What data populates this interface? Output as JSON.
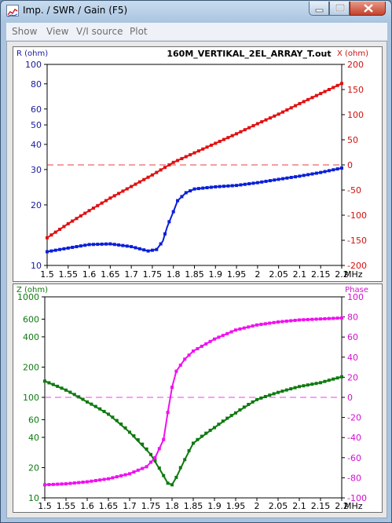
{
  "window": {
    "title": "Imp. / SWR / Gain   (F5)",
    "menu": [
      "Show",
      "View",
      "V/I source",
      "Plot"
    ]
  },
  "chart_data": [
    {
      "type": "line",
      "title": "160M_VERTIKAL_2EL_ARRAY_T.out",
      "xlabel": "MHz",
      "y_left_label": "R (ohm)",
      "y_right_label": "X (ohm)",
      "x_ticks": [
        "1.5",
        "1.55",
        "1.6",
        "1.65",
        "1.7",
        "1.75",
        "1.8",
        "1.85",
        "1.9",
        "1.95",
        "2",
        "2.05",
        "2.1",
        "2.15",
        "2.2"
      ],
      "y_left_ticks": [
        "10",
        "20",
        "30",
        "40",
        "50",
        "60",
        "80",
        "100"
      ],
      "y_right_ticks": [
        "-200",
        "-150",
        "-100",
        "-50",
        "0",
        "50",
        "100",
        "150",
        "200"
      ],
      "xlim": [
        1.5,
        2.2
      ],
      "y_left_scale": "log",
      "y_left_lim": [
        10,
        100
      ],
      "y_right_lim": [
        -200,
        200
      ],
      "ref_line_right": 0,
      "colors": {
        "left": "#0a1fd8",
        "right": "#e01010",
        "left_axis": "#1a1a9a",
        "right_axis": "#d01010"
      },
      "series": [
        {
          "axis": "left",
          "x": [
            1.5,
            1.55,
            1.6,
            1.65,
            1.7,
            1.74,
            1.76,
            1.775,
            1.785,
            1.8,
            1.81,
            1.83,
            1.85,
            1.9,
            1.95,
            2.0,
            2.05,
            2.1,
            2.15,
            2.2
          ],
          "y": [
            11.7,
            12.2,
            12.7,
            12.8,
            12.4,
            11.8,
            12.0,
            13.2,
            15.5,
            18.5,
            21,
            23,
            24,
            24.6,
            25,
            25.8,
            26.8,
            27.8,
            29,
            30.5
          ]
        },
        {
          "axis": "right",
          "x": [
            1.5,
            1.55,
            1.6,
            1.65,
            1.7,
            1.75,
            1.8,
            1.85,
            1.9,
            1.95,
            2.0,
            2.05,
            2.1,
            2.15,
            2.2
          ],
          "y": [
            -145,
            -117,
            -91,
            -66,
            -43,
            -20,
            5,
            24,
            43,
            62,
            82,
            101,
            122,
            142,
            162
          ]
        }
      ]
    },
    {
      "type": "line",
      "xlabel": "MHz",
      "y_left_label": "Z (ohm)",
      "y_right_label": "Phase",
      "x_ticks": [
        "1.5",
        "1.55",
        "1.6",
        "1.65",
        "1.7",
        "1.75",
        "1.8",
        "1.85",
        "1.9",
        "1.95",
        "2",
        "2.05",
        "2.1",
        "2.15",
        "2.2"
      ],
      "y_left_ticks": [
        "10",
        "20",
        "40",
        "60",
        "100",
        "200",
        "400",
        "600",
        "1000"
      ],
      "y_right_ticks": [
        "-100",
        "-80",
        "-60",
        "-40",
        "-20",
        "0",
        "20",
        "40",
        "60",
        "80",
        "100"
      ],
      "xlim": [
        1.5,
        2.2
      ],
      "y_left_scale": "log",
      "y_left_lim": [
        10,
        1000
      ],
      "y_right_lim": [
        -100,
        100
      ],
      "ref_line_right": 0,
      "colors": {
        "left": "#0f7a0f",
        "right": "#f010f0",
        "left_axis": "#0f7a0f",
        "right_axis": "#d010d0"
      },
      "series": [
        {
          "axis": "left",
          "x": [
            1.5,
            1.55,
            1.6,
            1.65,
            1.7,
            1.75,
            1.775,
            1.79,
            1.8,
            1.81,
            1.83,
            1.85,
            1.9,
            1.95,
            2.0,
            2.05,
            2.1,
            2.15,
            2.2
          ],
          "y": [
            145,
            118,
            90,
            68,
            45,
            27,
            18,
            14,
            13.5,
            16,
            24,
            35,
            50,
            70,
            95,
            112,
            128,
            140,
            160
          ]
        },
        {
          "axis": "right",
          "x": [
            1.5,
            1.55,
            1.6,
            1.65,
            1.7,
            1.74,
            1.76,
            1.78,
            1.79,
            1.8,
            1.81,
            1.83,
            1.85,
            1.9,
            1.95,
            2.0,
            2.05,
            2.1,
            2.15,
            2.2
          ],
          "y": [
            -87,
            -86,
            -84,
            -81,
            -76,
            -69,
            -60,
            -42,
            -15,
            10,
            26,
            38,
            46,
            58,
            67,
            72,
            75,
            77,
            78,
            79
          ]
        }
      ]
    }
  ]
}
